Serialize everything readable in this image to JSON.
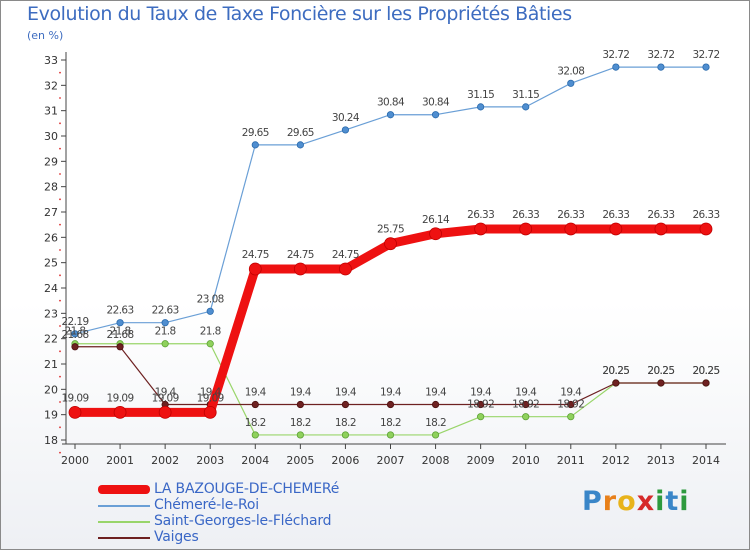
{
  "title": "Evolution du Taux de Taxe Foncière sur les Propriétés Bâties",
  "unit_label": "(en %)",
  "logo": {
    "text": "Proxiti",
    "letters": [
      {
        "ch": "P",
        "color": "#3a86c8"
      },
      {
        "ch": "r",
        "color": "#e8801a"
      },
      {
        "ch": "o",
        "color": "#e8b31a"
      },
      {
        "ch": "x",
        "color": "#d62a2a"
      },
      {
        "ch": "i",
        "color": "#2e9a3e"
      },
      {
        "ch": "t",
        "color": "#3a86c8"
      },
      {
        "ch": "i",
        "color": "#2e9a3e"
      }
    ]
  },
  "chart_data": {
    "type": "line",
    "title": "Evolution du Taux de Taxe Foncière sur les Propriétés Bâties",
    "ylabel": "(en %)",
    "xlabel": "",
    "x": [
      "2000",
      "2001",
      "2002",
      "2003",
      "2004",
      "2005",
      "2006",
      "2007",
      "2008",
      "2009",
      "2010",
      "2011",
      "2012",
      "2013",
      "2014"
    ],
    "ylim": [
      18,
      33
    ],
    "yticks": [
      "18",
      "19",
      "20",
      "21",
      "22",
      "23",
      "24",
      "25",
      "26",
      "27",
      "28",
      "29",
      "30",
      "31",
      "32",
      "33"
    ],
    "grid": false,
    "legend_position": "bottom-left",
    "series": [
      {
        "name": "LA BAZOUGE-DE-CHEMERé",
        "color": "#ee1111",
        "values": [
          19.09,
          19.09,
          19.09,
          19.09,
          24.75,
          24.75,
          24.75,
          25.75,
          26.14,
          26.33,
          26.33,
          26.33,
          26.33,
          26.33,
          26.33
        ],
        "labels": [
          "19.09",
          "19.09",
          "19.09",
          "19.09",
          "24.75",
          "24.75",
          "24.75",
          "25.75",
          "26.14",
          "26.33",
          "26.33",
          "26.33",
          "26.33",
          "26.33",
          "26.33"
        ]
      },
      {
        "name": "Chémeré-le-Roi",
        "color": "#6a9fd6",
        "values": [
          22.19,
          22.63,
          22.63,
          23.08,
          29.65,
          29.65,
          30.24,
          30.84,
          30.84,
          31.15,
          31.15,
          32.08,
          32.72,
          32.72,
          32.72
        ],
        "labels": [
          "22.19",
          "22.63",
          "22.63",
          "23.08",
          "29.65",
          "29.65",
          "30.24",
          "30.84",
          "30.84",
          "31.15",
          "31.15",
          "32.08",
          "32.72",
          "32.72",
          "32.72"
        ]
      },
      {
        "name": "Saint-Georges-le-Fléchard",
        "color": "#99d56a",
        "values": [
          21.8,
          21.8,
          21.8,
          21.8,
          18.2,
          18.2,
          18.2,
          18.2,
          18.2,
          18.92,
          18.92,
          18.92,
          20.25,
          20.25,
          20.25
        ],
        "labels": [
          "21.8",
          "21.8",
          "21.8",
          "21.8",
          "18.2",
          "18.2",
          "18.2",
          "18.2",
          "18.2",
          "18.92",
          "18.92",
          "18.92",
          "20.25",
          "20.25",
          "20.25"
        ]
      },
      {
        "name": "Vaiges",
        "color": "#6e2121",
        "values": [
          21.68,
          21.68,
          19.4,
          19.4,
          19.4,
          19.4,
          19.4,
          19.4,
          19.4,
          19.4,
          19.4,
          19.4,
          20.25,
          20.25,
          20.25
        ],
        "labels": [
          "21.68",
          "21.68",
          "19.4",
          "19.4",
          "19.4",
          "19.4",
          "19.4",
          "19.4",
          "19.4",
          "19.4",
          "19.4",
          "19.4",
          "20.25",
          "20.25",
          "20.25"
        ]
      }
    ]
  }
}
